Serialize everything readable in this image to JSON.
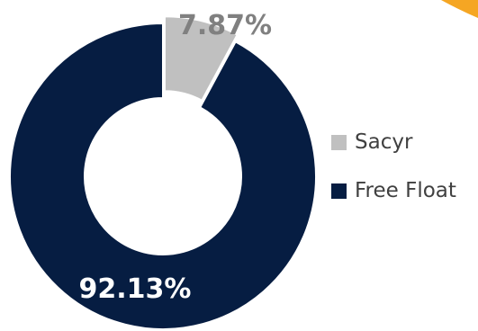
{
  "chart_data": {
    "type": "pie",
    "variant": "donut",
    "title": "",
    "slices": [
      {
        "name": "Sacyr",
        "value": 7.87,
        "label": "7.87%",
        "color": "#c0c0c0",
        "label_color": "#808080",
        "exploded": true
      },
      {
        "name": "Free Float",
        "value": 92.13,
        "label": "92.13%",
        "color": "#061d42",
        "label_color": "#ffffff",
        "exploded": false
      }
    ],
    "legend_placement": "right",
    "start_angle": "12 o'clock, clockwise"
  },
  "decoration": {
    "accent_color": "#f5a623"
  }
}
